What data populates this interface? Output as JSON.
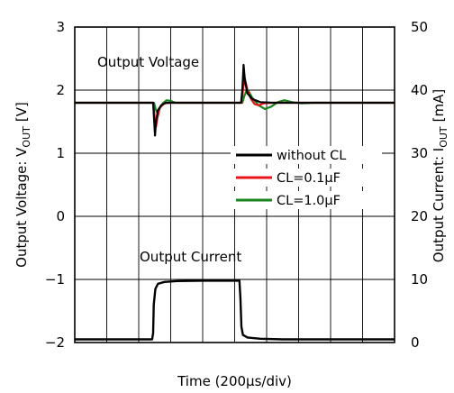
{
  "chart_data": {
    "type": "line",
    "xlabel": "Time (200μs/div)",
    "ylabel_left": "Output Voltage: V",
    "ylabel_left_sub": "OUT",
    "ylabel_left_unit": "[V]",
    "ylabel_right": "Output Current: I",
    "ylabel_right_sub": "OUT",
    "ylabel_right_unit": "[mA]",
    "x_divisions": 10,
    "ylim_left": [
      -2,
      3
    ],
    "ylim_right": [
      0,
      50
    ],
    "yticks_left": [
      "3",
      "2",
      "1",
      "0",
      "−1",
      "−2"
    ],
    "yticks_right": [
      "50",
      "40",
      "30",
      "20",
      "10",
      "0"
    ],
    "grid": true,
    "annotations": [
      "Output Voltage",
      "Output Current"
    ],
    "legend_position": "right-middle",
    "series": [
      {
        "name": "without CL",
        "color": "#000000",
        "axis": "left",
        "points": [
          [
            0,
            1.8
          ],
          [
            2.45,
            1.8
          ],
          [
            2.48,
            1.55
          ],
          [
            2.51,
            1.28
          ],
          [
            2.54,
            1.5
          ],
          [
            2.6,
            1.68
          ],
          [
            2.7,
            1.76
          ],
          [
            2.85,
            1.8
          ],
          [
            5.2,
            1.8
          ],
          [
            5.24,
            2.0
          ],
          [
            5.28,
            2.4
          ],
          [
            5.32,
            2.15
          ],
          [
            5.4,
            1.95
          ],
          [
            5.55,
            1.86
          ],
          [
            5.8,
            1.81
          ],
          [
            6.2,
            1.8
          ],
          [
            10,
            1.8
          ]
        ]
      },
      {
        "name": "CL=0.1μF",
        "color": "#e8141a",
        "axis": "left",
        "points": [
          [
            0,
            1.8
          ],
          [
            2.46,
            1.8
          ],
          [
            2.5,
            1.55
          ],
          [
            2.54,
            1.42
          ],
          [
            2.58,
            1.55
          ],
          [
            2.66,
            1.72
          ],
          [
            2.8,
            1.79
          ],
          [
            3.0,
            1.8
          ],
          [
            5.22,
            1.8
          ],
          [
            5.27,
            2.05
          ],
          [
            5.32,
            2.18
          ],
          [
            5.4,
            2.0
          ],
          [
            5.5,
            1.87
          ],
          [
            5.62,
            1.78
          ],
          [
            5.75,
            1.76
          ],
          [
            5.9,
            1.79
          ],
          [
            6.2,
            1.8
          ],
          [
            10,
            1.8
          ]
        ]
      },
      {
        "name": "CL=1.0μF",
        "color": "#18841e",
        "axis": "left",
        "points": [
          [
            0,
            1.8
          ],
          [
            2.48,
            1.8
          ],
          [
            2.53,
            1.7
          ],
          [
            2.58,
            1.64
          ],
          [
            2.65,
            1.7
          ],
          [
            2.75,
            1.79
          ],
          [
            2.87,
            1.84
          ],
          [
            3.0,
            1.83
          ],
          [
            3.15,
            1.8
          ],
          [
            5.24,
            1.8
          ],
          [
            5.3,
            1.9
          ],
          [
            5.36,
            1.98
          ],
          [
            5.44,
            1.98
          ],
          [
            5.55,
            1.88
          ],
          [
            5.75,
            1.76
          ],
          [
            5.95,
            1.7
          ],
          [
            6.15,
            1.74
          ],
          [
            6.35,
            1.81
          ],
          [
            6.55,
            1.84
          ],
          [
            6.8,
            1.81
          ],
          [
            7.1,
            1.79
          ],
          [
            7.5,
            1.8
          ],
          [
            10,
            1.8
          ]
        ]
      },
      {
        "name": "Output Current",
        "color": "#000000",
        "axis": "right",
        "points": [
          [
            0,
            0.5
          ],
          [
            2.42,
            0.5
          ],
          [
            2.45,
            1.5
          ],
          [
            2.47,
            6.0
          ],
          [
            2.52,
            8.5
          ],
          [
            2.6,
            9.3
          ],
          [
            2.8,
            9.6
          ],
          [
            3.2,
            9.75
          ],
          [
            4.0,
            9.8
          ],
          [
            5.15,
            9.8
          ],
          [
            5.18,
            7.0
          ],
          [
            5.21,
            2.5
          ],
          [
            5.26,
            1.2
          ],
          [
            5.4,
            0.8
          ],
          [
            5.8,
            0.6
          ],
          [
            6.5,
            0.5
          ],
          [
            10,
            0.5
          ]
        ]
      }
    ]
  }
}
